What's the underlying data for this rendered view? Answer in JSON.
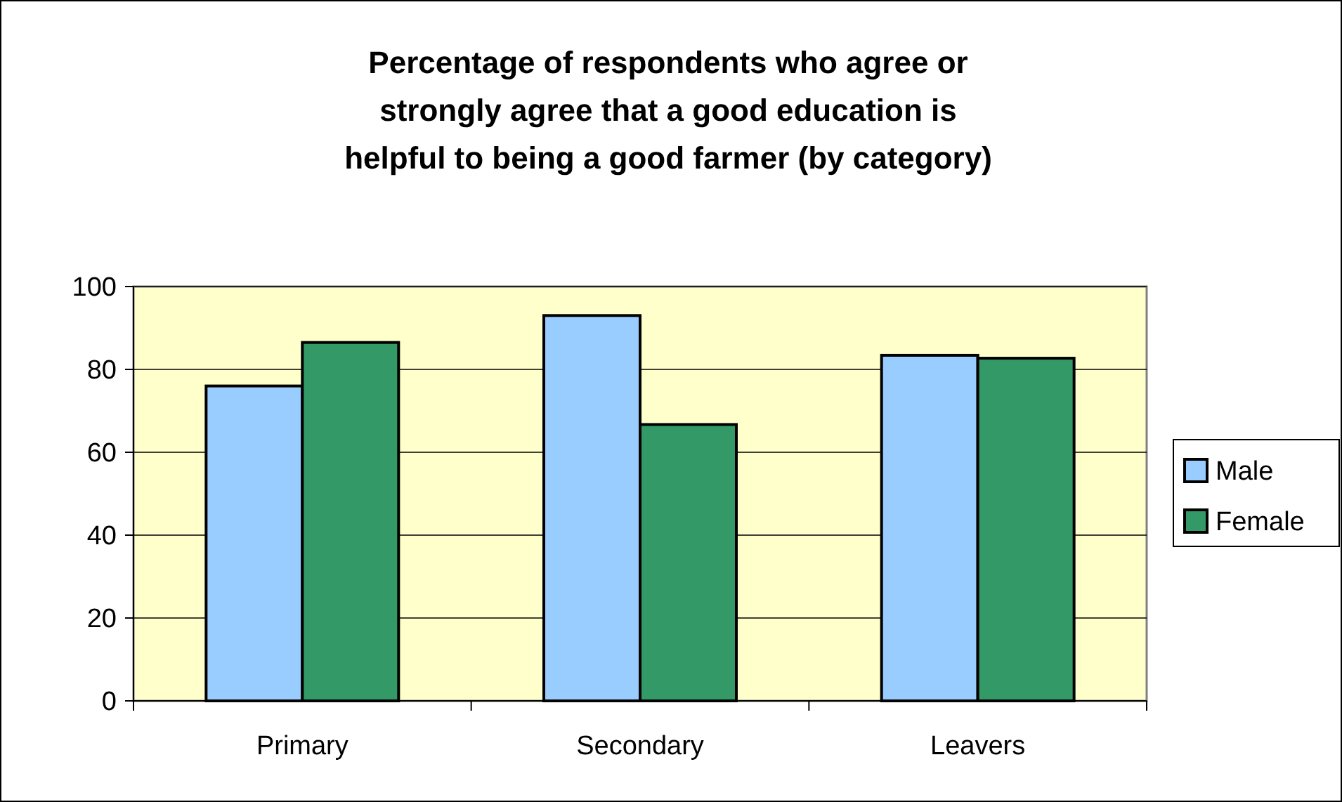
{
  "chart_data": {
    "type": "bar",
    "title": "Percentage of respondents who agree or strongly agree that a good education is helpful to being a good farmer (by category)",
    "categories": [
      "Primary",
      "Secondary",
      "Leavers"
    ],
    "series": [
      {
        "name": "Male",
        "color": "#99ccff",
        "values": [
          76,
          93,
          83.4
        ]
      },
      {
        "name": "Female",
        "color": "#339966",
        "values": [
          86.5,
          66.7,
          82.7
        ]
      }
    ],
    "ylim": [
      0,
      100
    ],
    "yticks": [
      0,
      20,
      40,
      60,
      80,
      100
    ],
    "grid": "y",
    "legend": "right"
  }
}
